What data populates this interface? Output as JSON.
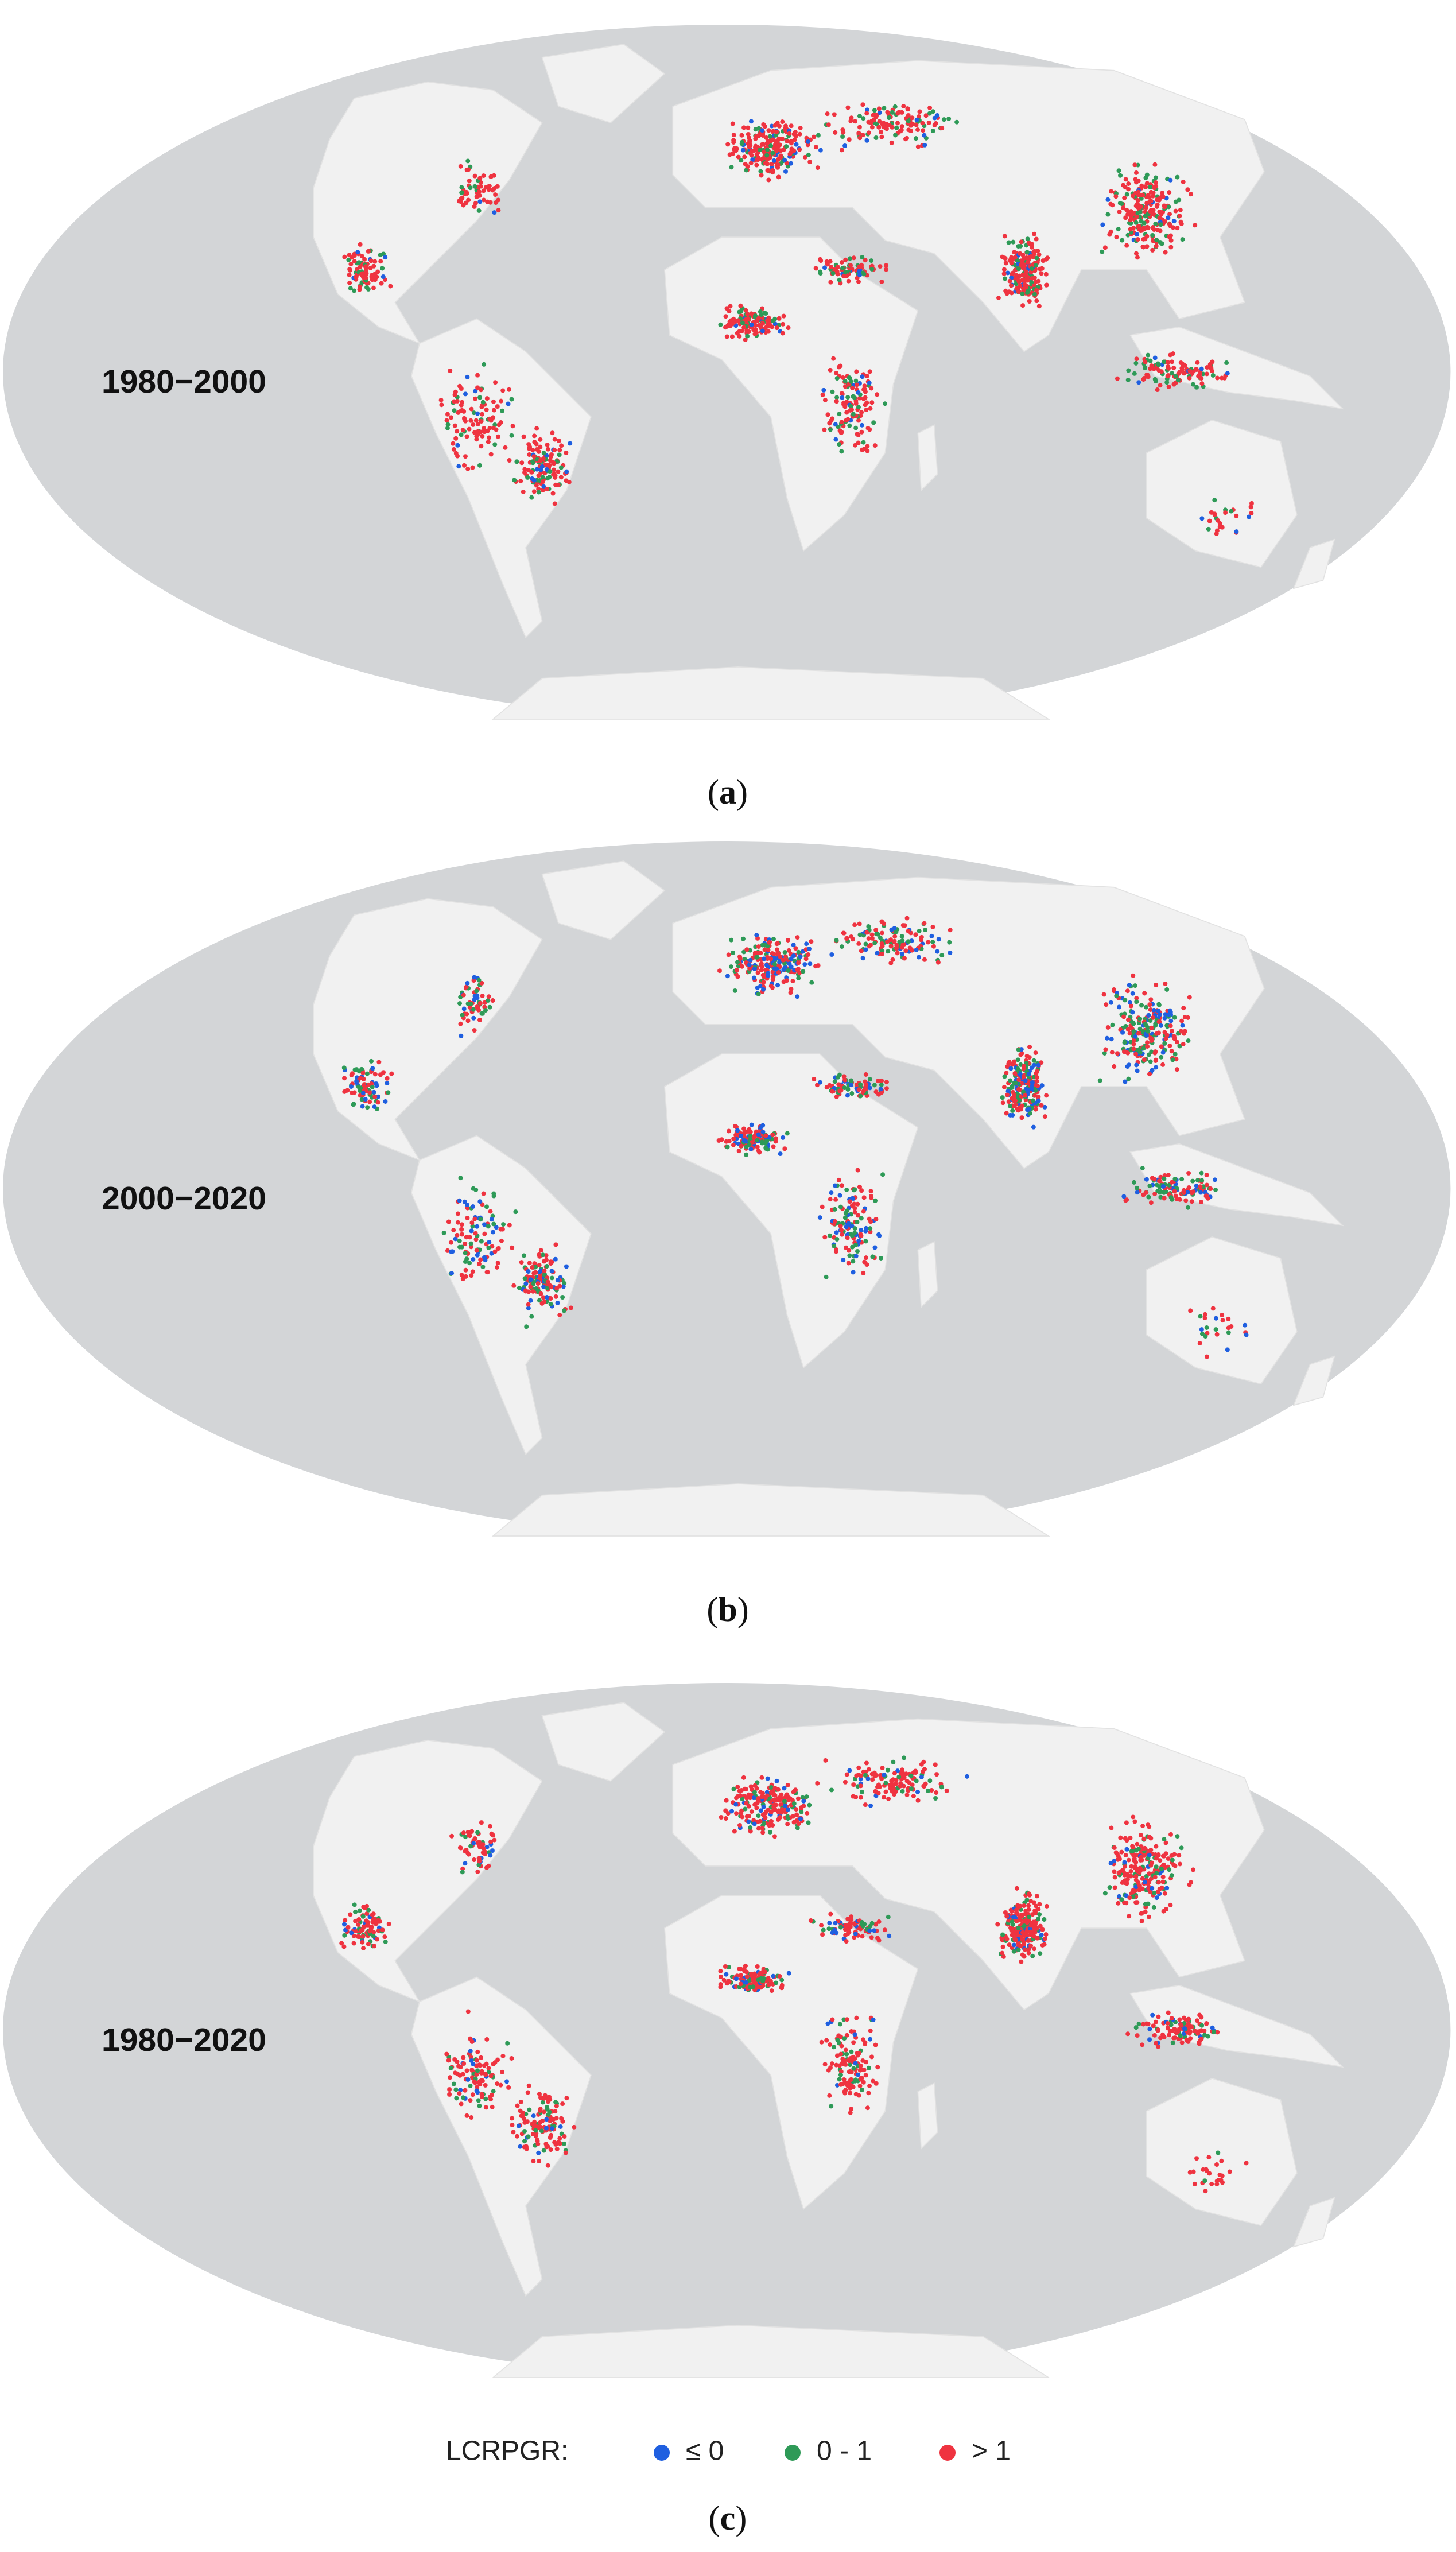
{
  "panels": [
    {
      "period": "1980−2000",
      "caption": {
        "open": "(",
        "letter": "a",
        "close": ")"
      }
    },
    {
      "period": "2000−2020",
      "caption": {
        "open": "(",
        "letter": "b",
        "close": ")"
      }
    },
    {
      "period": "1980−2020",
      "caption": {
        "open": "(",
        "letter": "c",
        "close": ")"
      }
    }
  ],
  "legend": {
    "title": "LCRPGR:",
    "items": [
      {
        "label": "≤ 0",
        "color": "#1f5fe0"
      },
      {
        "label": "0 - 1",
        "color": "#2e9a57"
      },
      {
        "label": "> 1",
        "color": "#ef3340"
      }
    ]
  }
}
